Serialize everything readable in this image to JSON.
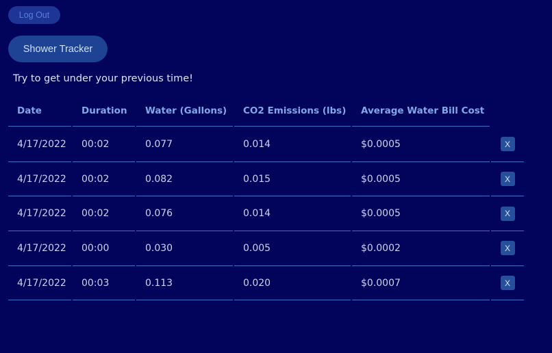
{
  "header": {
    "logout_label": "Log Out",
    "tracker_label": "Shower Tracker"
  },
  "subtitle": "Try to get under your previous time!",
  "table": {
    "columns": [
      "Date",
      "Duration",
      "Water (Gallons)",
      "CO2 Emissions (lbs)",
      "Average Water Bill Cost"
    ],
    "delete_label": "X",
    "rows": [
      [
        "4/17/2022",
        "00:02",
        "0.077",
        "0.014",
        "$0.0005"
      ],
      [
        "4/17/2022",
        "00:02",
        "0.082",
        "0.015",
        "$0.0005"
      ],
      [
        "4/17/2022",
        "00:02",
        "0.076",
        "0.014",
        "$0.0005"
      ],
      [
        "4/17/2022",
        "00:00",
        "0.030",
        "0.005",
        "$0.0002"
      ],
      [
        "4/17/2022",
        "00:03",
        "0.113",
        "0.020",
        "$0.0007"
      ]
    ]
  }
}
